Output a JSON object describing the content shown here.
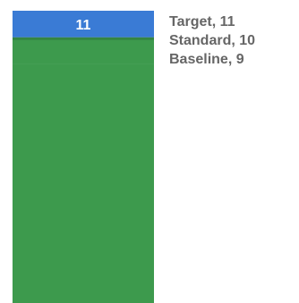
{
  "chart_data": {
    "type": "bar",
    "stacked": true,
    "categories": [
      ""
    ],
    "series": [
      {
        "name": "Baseline",
        "values": [
          9
        ],
        "color": "#3d9a4d"
      },
      {
        "name": "Standard",
        "values": [
          1
        ],
        "color": "#3d9a4d"
      },
      {
        "name": "Target",
        "values": [
          1
        ],
        "color": "#3a7bd5"
      }
    ],
    "total_label": "11",
    "ylim": [
      0,
      11
    ],
    "legend": {
      "placement": "right",
      "entries": [
        "Target, 11",
        "Standard, 10",
        "Baseline, 9"
      ]
    },
    "grid": false
  }
}
